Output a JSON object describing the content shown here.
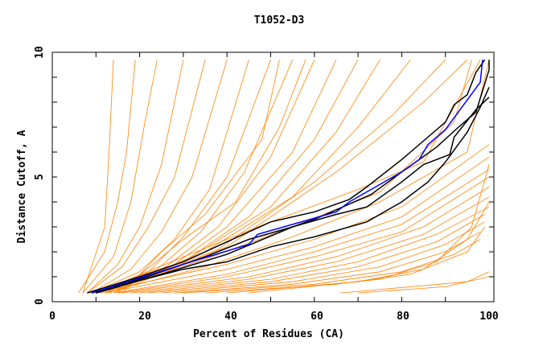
{
  "chart_data": {
    "type": "line",
    "title": "T1052-D3",
    "xlabel": "Percent of Residues (CA)",
    "ylabel": "Distance Cutoff, A",
    "xlim": [
      0,
      100
    ],
    "ylim": [
      0,
      10
    ],
    "xticks": [
      "0",
      "20",
      "40",
      "60",
      "80",
      "100"
    ],
    "yticks": [
      "0",
      "5",
      "10"
    ],
    "grid": false,
    "colors": {
      "other": "#ff8000",
      "highlight_blue": "#0000ff",
      "highlight_black": "#000000"
    },
    "highlight_series": [
      {
        "color": "black",
        "points": [
          [
            8,
            0.35
          ],
          [
            20,
            1.0
          ],
          [
            30,
            1.6
          ],
          [
            40,
            2.4
          ],
          [
            50,
            3.2
          ],
          [
            60,
            3.6
          ],
          [
            68,
            4.1
          ],
          [
            72,
            4.6
          ],
          [
            80,
            5.7
          ],
          [
            90,
            7.2
          ],
          [
            92,
            7.9
          ],
          [
            95,
            8.3
          ],
          [
            97,
            9.2
          ],
          [
            99,
            9.7
          ]
        ]
      },
      {
        "color": "black",
        "points": [
          [
            9,
            0.35
          ],
          [
            20,
            0.9
          ],
          [
            35,
            1.8
          ],
          [
            45,
            2.5
          ],
          [
            55,
            3.0
          ],
          [
            65,
            3.5
          ],
          [
            72,
            3.8
          ],
          [
            80,
            4.8
          ],
          [
            85,
            5.5
          ],
          [
            91,
            5.9
          ],
          [
            92,
            6.6
          ],
          [
            97,
            7.7
          ],
          [
            100,
            8.2
          ]
        ]
      },
      {
        "color": "black",
        "points": [
          [
            10,
            0.35
          ],
          [
            25,
            1.1
          ],
          [
            40,
            1.9
          ],
          [
            55,
            3.0
          ],
          [
            60,
            3.3
          ],
          [
            73,
            4.3
          ],
          [
            80,
            5.2
          ],
          [
            88,
            6.2
          ],
          [
            93,
            7.0
          ],
          [
            97,
            7.6
          ],
          [
            100,
            9.3
          ],
          [
            100,
            9.7
          ]
        ]
      },
      {
        "color": "black",
        "points": [
          [
            10,
            0.35
          ],
          [
            20,
            0.85
          ],
          [
            30,
            1.3
          ],
          [
            40,
            1.6
          ],
          [
            50,
            2.2
          ],
          [
            60,
            2.6
          ],
          [
            72,
            3.2
          ],
          [
            80,
            4.0
          ],
          [
            86,
            4.8
          ],
          [
            90,
            5.6
          ],
          [
            95,
            6.8
          ],
          [
            98,
            7.8
          ],
          [
            100,
            8.6
          ]
        ]
      },
      {
        "color": "blue",
        "points": [
          [
            9,
            0.35
          ],
          [
            20,
            0.95
          ],
          [
            30,
            1.5
          ],
          [
            45,
            2.3
          ],
          [
            47,
            2.7
          ],
          [
            55,
            3.1
          ],
          [
            65,
            3.6
          ],
          [
            68,
            4.0
          ],
          [
            80,
            5.2
          ],
          [
            84,
            5.7
          ],
          [
            86,
            6.3
          ],
          [
            90,
            6.9
          ],
          [
            98,
            8.8
          ],
          [
            98.5,
            9.7
          ]
        ]
      }
    ],
    "other_series": [
      [
        [
          6,
          0.35
        ],
        [
          12,
          2
        ],
        [
          15,
          4
        ],
        [
          17,
          6
        ],
        [
          19,
          9.7
        ]
      ],
      [
        [
          7,
          0.35
        ],
        [
          14,
          1.8
        ],
        [
          18,
          4
        ],
        [
          21,
          7
        ],
        [
          24,
          9.7
        ]
      ],
      [
        [
          8,
          0.35
        ],
        [
          15,
          1.5
        ],
        [
          20,
          3
        ],
        [
          25,
          5.5
        ],
        [
          30,
          9.7
        ]
      ],
      [
        [
          8,
          0.35
        ],
        [
          16,
          1.4
        ],
        [
          22,
          3
        ],
        [
          28,
          5
        ],
        [
          35,
          9.7
        ]
      ],
      [
        [
          9,
          0.35
        ],
        [
          18,
          1.3
        ],
        [
          25,
          2.8
        ],
        [
          32,
          5
        ],
        [
          40,
          9.7
        ]
      ],
      [
        [
          9,
          0.35
        ],
        [
          20,
          1.2
        ],
        [
          28,
          2.5
        ],
        [
          36,
          4.5
        ],
        [
          45,
          9.7
        ]
      ],
      [
        [
          10,
          0.35
        ],
        [
          22,
          1.2
        ],
        [
          30,
          2.6
        ],
        [
          40,
          5
        ],
        [
          50,
          9.7
        ]
      ],
      [
        [
          10,
          0.35
        ],
        [
          24,
          1.3
        ],
        [
          34,
          2.8
        ],
        [
          44,
          5.2
        ],
        [
          55,
          9.7
        ]
      ],
      [
        [
          11,
          0.35
        ],
        [
          26,
          1.4
        ],
        [
          38,
          3
        ],
        [
          50,
          5.8
        ],
        [
          60,
          9.7
        ]
      ],
      [
        [
          11,
          0.35
        ],
        [
          28,
          1.5
        ],
        [
          40,
          3
        ],
        [
          55,
          6
        ],
        [
          65,
          9.7
        ]
      ],
      [
        [
          12,
          0.35
        ],
        [
          30,
          1.6
        ],
        [
          45,
          3.4
        ],
        [
          60,
          6.5
        ],
        [
          70,
          9.7
        ]
      ],
      [
        [
          12,
          0.35
        ],
        [
          32,
          1.8
        ],
        [
          50,
          3.8
        ],
        [
          65,
          6.8
        ],
        [
          75,
          9.7
        ]
      ],
      [
        [
          13,
          0.35
        ],
        [
          35,
          2
        ],
        [
          55,
          4.2
        ],
        [
          70,
          7
        ],
        [
          82,
          9.7
        ]
      ],
      [
        [
          13,
          0.35
        ],
        [
          38,
          2.1
        ],
        [
          60,
          4.8
        ],
        [
          78,
          7.5
        ],
        [
          90,
          9.7
        ]
      ],
      [
        [
          14,
          0.35
        ],
        [
          40,
          2.2
        ],
        [
          65,
          5.2
        ],
        [
          85,
          8
        ],
        [
          95,
          9.7
        ]
      ],
      [
        [
          7,
          0.35
        ],
        [
          12,
          3
        ],
        [
          13,
          6
        ],
        [
          14,
          9.7
        ]
      ],
      [
        [
          15,
          0.35
        ],
        [
          30,
          2.5
        ],
        [
          42,
          4
        ],
        [
          52,
          7
        ],
        [
          58,
          9.7
        ]
      ],
      [
        [
          16,
          0.35
        ],
        [
          25,
          2
        ],
        [
          35,
          3.5
        ],
        [
          48,
          6.5
        ],
        [
          52,
          9.7
        ]
      ],
      [
        [
          10,
          0.35
        ],
        [
          40,
          1.5
        ],
        [
          60,
          2.5
        ],
        [
          80,
          3.8
        ],
        [
          100,
          6.3
        ]
      ],
      [
        [
          12,
          0.35
        ],
        [
          40,
          1.3
        ],
        [
          60,
          2.2
        ],
        [
          80,
          3.4
        ],
        [
          100,
          5.8
        ]
      ],
      [
        [
          14,
          0.35
        ],
        [
          40,
          1.1
        ],
        [
          60,
          2.0
        ],
        [
          80,
          3.1
        ],
        [
          100,
          5.3
        ]
      ],
      [
        [
          15,
          0.35
        ],
        [
          40,
          1.0
        ],
        [
          60,
          1.8
        ],
        [
          80,
          2.8
        ],
        [
          100,
          5.0
        ]
      ],
      [
        [
          16,
          0.35
        ],
        [
          45,
          1.0
        ],
        [
          65,
          1.8
        ],
        [
          85,
          3.0
        ],
        [
          100,
          4.6
        ]
      ],
      [
        [
          18,
          0.35
        ],
        [
          45,
          0.9
        ],
        [
          65,
          1.6
        ],
        [
          85,
          2.7
        ],
        [
          100,
          4.2
        ]
      ],
      [
        [
          20,
          0.35
        ],
        [
          50,
          0.9
        ],
        [
          70,
          1.6
        ],
        [
          88,
          2.7
        ],
        [
          100,
          3.8
        ]
      ],
      [
        [
          22,
          0.35
        ],
        [
          50,
          0.8
        ],
        [
          70,
          1.4
        ],
        [
          88,
          2.4
        ],
        [
          99,
          3.5
        ]
      ],
      [
        [
          25,
          0.35
        ],
        [
          55,
          0.8
        ],
        [
          75,
          1.4
        ],
        [
          90,
          2.3
        ],
        [
          99,
          3.2
        ]
      ],
      [
        [
          28,
          0.35
        ],
        [
          55,
          0.7
        ],
        [
          75,
          1.2
        ],
        [
          90,
          2.0
        ],
        [
          98,
          2.8
        ]
      ],
      [
        [
          30,
          0.35
        ],
        [
          60,
          0.7
        ],
        [
          80,
          1.2
        ],
        [
          92,
          1.9
        ],
        [
          98,
          2.5
        ]
      ],
      [
        [
          35,
          0.35
        ],
        [
          65,
          0.7
        ],
        [
          82,
          1.1
        ],
        [
          95,
          2.0
        ],
        [
          99,
          3.0
        ]
      ],
      [
        [
          40,
          0.35
        ],
        [
          70,
          0.8
        ],
        [
          85,
          1.3
        ],
        [
          95,
          2.5
        ],
        [
          100,
          4.0
        ]
      ],
      [
        [
          45,
          0.35
        ],
        [
          75,
          0.9
        ],
        [
          88,
          1.6
        ],
        [
          96,
          3
        ],
        [
          100,
          5.5
        ]
      ],
      [
        [
          12,
          0.35
        ],
        [
          35,
          1.4
        ],
        [
          55,
          2.6
        ],
        [
          75,
          4
        ],
        [
          95,
          6
        ],
        [
          100,
          9.7
        ]
      ],
      [
        [
          10,
          0.35
        ],
        [
          30,
          1.8
        ],
        [
          50,
          3.2
        ],
        [
          70,
          4.5
        ],
        [
          85,
          5.6
        ],
        [
          98,
          9.7
        ]
      ],
      [
        [
          11,
          0.35
        ],
        [
          35,
          1.7
        ],
        [
          55,
          3.0
        ],
        [
          75,
          4.4
        ],
        [
          92,
          7.2
        ],
        [
          96,
          9.7
        ]
      ],
      [
        [
          66,
          0.35
        ],
        [
          95,
          0.8
        ],
        [
          100,
          1.2
        ]
      ],
      [
        [
          70,
          0.35
        ],
        [
          90,
          0.6
        ],
        [
          100,
          1.0
        ]
      ]
    ]
  }
}
